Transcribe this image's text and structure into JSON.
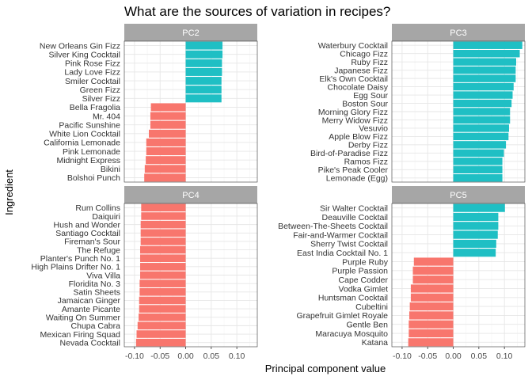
{
  "chart_data": {
    "type": "bar",
    "orientation": "horizontal",
    "title": "What are the sources of variation in recipes?",
    "xlabel": "Principal component value",
    "ylabel": "Ingredient",
    "xlim": [
      -0.12,
      0.14
    ],
    "x_ticks": [
      -0.1,
      -0.05,
      0.0,
      0.05,
      0.1
    ],
    "x_tick_labels": [
      "-0.10",
      "-0.05",
      "0.00",
      "0.05",
      "0.10"
    ],
    "grid": true,
    "colors": {
      "positive": "#1fbfc4",
      "negative": "#f8766d"
    },
    "facets": [
      {
        "label": "PC2",
        "categories": [
          "New Orleans Gin Fizz",
          "Silver King Cocktail",
          "Pink Rose Fizz",
          "Lady Love Fizz",
          "Smiler Cocktail",
          "Green Fizz",
          "Silver Fizz",
          "Bella Fragolia",
          "Mr. 404",
          "Pacific Sunshine",
          "White Lion Cocktail",
          "California Lemonade",
          "Pink Lemonade",
          "Midnight Express",
          "Bikini",
          "Bolshoi Punch"
        ],
        "values": [
          0.072,
          0.072,
          0.071,
          0.071,
          0.07,
          0.07,
          0.07,
          -0.068,
          -0.069,
          -0.069,
          -0.072,
          -0.077,
          -0.077,
          -0.078,
          -0.08,
          -0.081
        ]
      },
      {
        "label": "PC3",
        "categories": [
          "Waterbury Cocktail",
          "Chicago Fizz",
          "Ruby Fizz",
          "Japanese Fizz",
          "Elk's Own Cocktail",
          "Chocolate Daisy",
          "Egg Sour",
          "Boston Sour",
          "Morning Glory Fizz",
          "Merry Widow Fizz",
          "Vesuvio",
          "Apple Blow Fizz",
          "Derby Fizz",
          "Bird-of-Paradise Fizz",
          "Ramos Fizz",
          "Pike's Peak Cooler",
          "Lemonade (Egg)"
        ],
        "values": [
          0.135,
          0.13,
          0.123,
          0.122,
          0.122,
          0.118,
          0.116,
          0.114,
          0.111,
          0.111,
          0.109,
          0.108,
          0.103,
          0.099,
          0.096,
          0.096,
          0.096
        ]
      },
      {
        "label": "PC4",
        "categories": [
          "Rum Collins",
          "Daiquiri",
          "Hush and Wonder",
          "Santiago Cocktail",
          "Fireman's Sour",
          "The Refuge",
          "Planter's Punch No. 1",
          "High Plains Drifter No. 1",
          "Viva Villa",
          "Floridita No. 3",
          "Satin Sheets",
          "Jamaican Ginger",
          "Amante Picante",
          "Waiting On Summer",
          "Chupa Cabra",
          "Mexican Firing Squad",
          "Nevada Cocktail"
        ],
        "values": [
          -0.087,
          -0.087,
          -0.088,
          -0.088,
          -0.088,
          -0.089,
          -0.089,
          -0.089,
          -0.089,
          -0.09,
          -0.09,
          -0.091,
          -0.091,
          -0.092,
          -0.094,
          -0.096,
          -0.097
        ]
      },
      {
        "label": "PC5",
        "categories": [
          "Sir Walter Cocktail",
          "Deauville Cocktail",
          "Between-The-Sheets Cocktail",
          "Fair-and-Warmer Cocktail",
          "Sherry Twist Cocktail",
          "East India Cocktail No. 1",
          "Purple Ruby",
          "Purple Passion",
          "Cape Codder",
          "Vodka Gimlet",
          "Huntsman Cocktail",
          "Cubeltini",
          "Grapefruit Gimlet Royale",
          "Gentle Ben",
          "Maracuya Mosquito",
          "Katana"
        ],
        "values": [
          0.101,
          0.088,
          0.088,
          0.087,
          0.084,
          0.083,
          -0.077,
          -0.079,
          -0.079,
          -0.083,
          -0.083,
          -0.085,
          -0.086,
          -0.087,
          -0.087,
          -0.088
        ]
      }
    ]
  }
}
